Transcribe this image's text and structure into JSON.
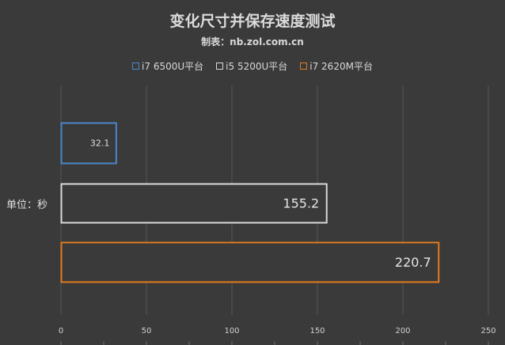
{
  "title": "变化尺寸并保存速度测试",
  "subtitle": "制表：nb.zol.com.cn",
  "unit_label": "单位：秒",
  "legend": [
    {
      "label": "i7 6500U平台",
      "color": "#4a86c8"
    },
    {
      "label": "i5 5200U平台",
      "color": "#d9d9d9"
    },
    {
      "label": "i7 2620M平台",
      "color": "#e07b1e"
    }
  ],
  "chart_data": {
    "type": "bar",
    "orientation": "horizontal",
    "title": "变化尺寸并保存速度测试",
    "subtitle": "制表：nb.zol.com.cn",
    "ylabel": "单位：秒",
    "xlim": [
      0,
      250
    ],
    "xticks": [
      0,
      50,
      100,
      150,
      200,
      250
    ],
    "grid": true,
    "legend_position": "top",
    "series": [
      {
        "name": "i7 6500U平台",
        "value": 32.1,
        "label": "32.1",
        "color": "#4a86c8"
      },
      {
        "name": "i5 5200U平台",
        "value": 155.2,
        "label": "155.2",
        "color": "#d9d9d9"
      },
      {
        "name": "i7 2620M平台",
        "value": 220.7,
        "label": "220.7",
        "color": "#e07b1e"
      }
    ]
  }
}
